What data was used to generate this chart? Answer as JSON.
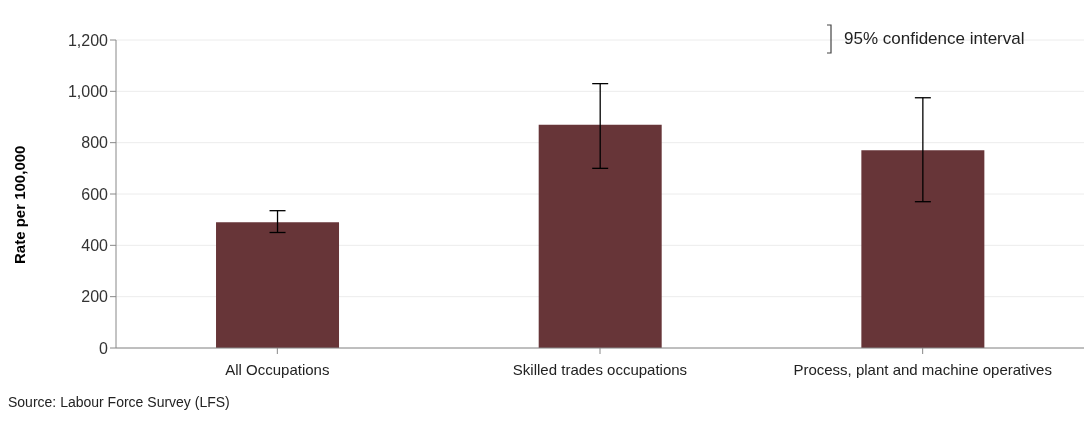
{
  "chart_data": {
    "type": "bar",
    "ylabel": "Rate per 100,000",
    "categories": [
      "All Occupations",
      "Skilled trades occupations",
      "Process, plant and machine operatives"
    ],
    "values": [
      490,
      870,
      770
    ],
    "color": "#673538",
    "errors": [
      [
        450,
        535
      ],
      [
        700,
        1030
      ],
      [
        570,
        975
      ]
    ],
    "ylim": [
      0,
      1200
    ],
    "yticks": [
      0,
      200,
      400,
      600,
      800,
      {
        "value": 1000,
        "label": "1,000"
      },
      {
        "value": 1200,
        "label": "1,200"
      }
    ],
    "grid": "y",
    "annotations": [
      "95% confidence interval",
      "Source: Labour Force Survey (LFS)"
    ]
  }
}
